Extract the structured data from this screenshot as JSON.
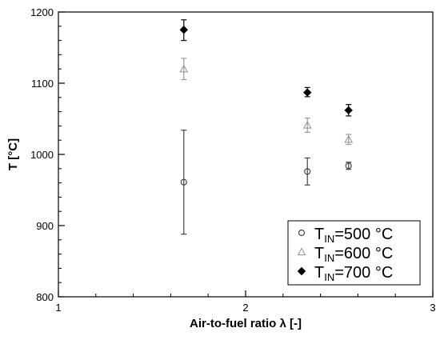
{
  "chart_data": {
    "type": "scatter",
    "xlabel": "Air-to-fuel ratio λ [-]",
    "ylabel": "T [°C]",
    "xlim": [
      1,
      3
    ],
    "ylim": [
      800,
      1200
    ],
    "xticks": [
      1,
      2,
      3
    ],
    "yticks": [
      800,
      900,
      1000,
      1100,
      1200
    ],
    "x_minor_step": 0.2,
    "y_minor_step": 20,
    "grid": false,
    "legend_position": "bottom-right",
    "series": [
      {
        "legend_main": "T",
        "legend_sub": "IN",
        "legend_rest": "=500 °C",
        "marker": "circle-open",
        "color": "#444444",
        "points": [
          {
            "x": 1.67,
            "y": 961,
            "err_low": 888,
            "err_high": 1034
          },
          {
            "x": 2.33,
            "y": 976,
            "err_low": 957,
            "err_high": 995
          },
          {
            "x": 2.55,
            "y": 984,
            "err_low": 979,
            "err_high": 989
          }
        ]
      },
      {
        "legend_main": "T",
        "legend_sub": "IN",
        "legend_rest": "=600 °C",
        "marker": "triangle-open",
        "color": "#9a9a9a",
        "points": [
          {
            "x": 1.67,
            "y": 1120,
            "err_low": 1105,
            "err_high": 1135
          },
          {
            "x": 2.33,
            "y": 1041,
            "err_low": 1031,
            "err_high": 1051
          },
          {
            "x": 2.55,
            "y": 1021,
            "err_low": 1014,
            "err_high": 1028
          }
        ]
      },
      {
        "legend_main": "T",
        "legend_sub": "IN",
        "legend_rest": "=700 °C",
        "marker": "diamond-filled",
        "color": "#000000",
        "points": [
          {
            "x": 1.67,
            "y": 1175,
            "err_low": 1160,
            "err_high": 1189
          },
          {
            "x": 2.33,
            "y": 1087,
            "err_low": 1081,
            "err_high": 1094
          },
          {
            "x": 2.55,
            "y": 1062,
            "err_low": 1054,
            "err_high": 1070
          }
        ]
      }
    ]
  }
}
